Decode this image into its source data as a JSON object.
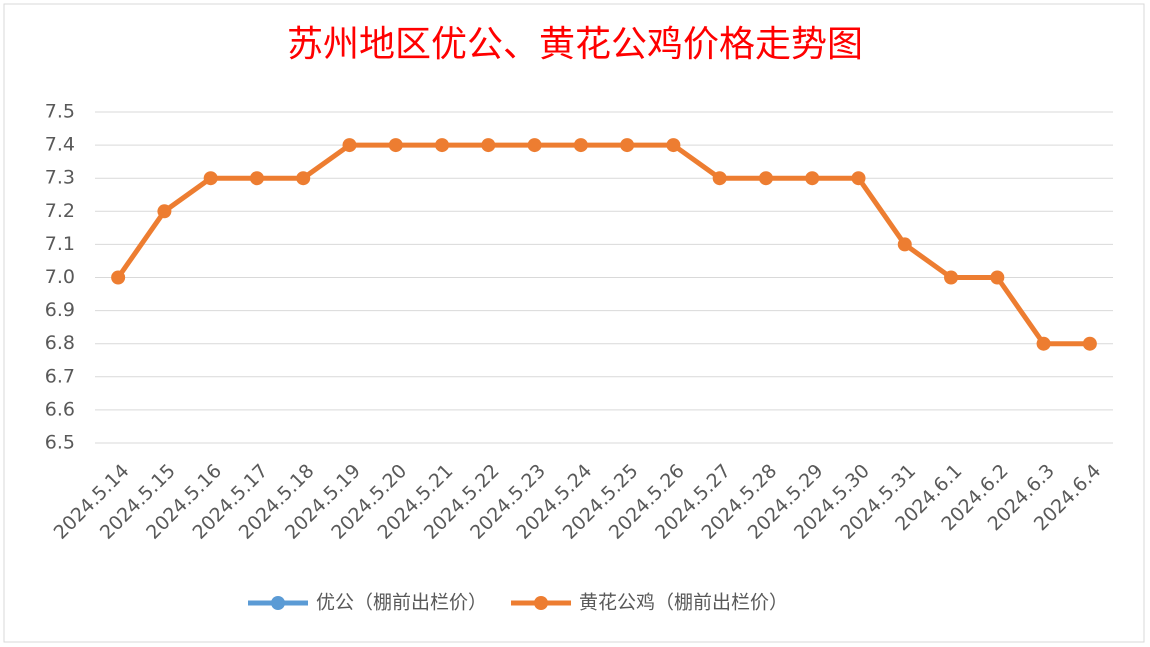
{
  "chart_data": {
    "type": "line",
    "title": "苏州地区优公、黄花公鸡价格走势图",
    "categories": [
      "2024.5.14",
      "2024.5.15",
      "2024.5.16",
      "2024.5.17",
      "2024.5.18",
      "2024.5.19",
      "2024.5.20",
      "2024.5.21",
      "2024.5.22",
      "2024.5.23",
      "2024.5.24",
      "2024.5.25",
      "2024.5.26",
      "2024.5.27",
      "2024.5.28",
      "2024.5.29",
      "2024.5.30",
      "2024.5.31",
      "2024.6.1",
      "2024.6.2",
      "2024.6.3",
      "2024.6.4"
    ],
    "series": [
      {
        "name": "优公（棚前出栏价）",
        "color": "#5b9bd5",
        "values": [
          null,
          null,
          null,
          null,
          null,
          null,
          null,
          null,
          null,
          null,
          null,
          null,
          null,
          null,
          null,
          null,
          null,
          null,
          null,
          null,
          null,
          null
        ]
      },
      {
        "name": "黄花公鸡（棚前出栏价）",
        "color": "#ed7d31",
        "values": [
          7.0,
          7.2,
          7.3,
          7.3,
          7.3,
          7.4,
          7.4,
          7.4,
          7.4,
          7.4,
          7.4,
          7.4,
          7.4,
          7.3,
          7.3,
          7.3,
          7.3,
          7.1,
          7.0,
          7.0,
          6.8,
          6.8
        ]
      }
    ],
    "ylim": [
      6.5,
      7.5
    ],
    "yticks": [
      6.5,
      6.6,
      6.7,
      6.8,
      6.9,
      {
        "value": 7,
        "label": "7.0"
      },
      7.1,
      7.2,
      7.3,
      7.4,
      7.5
    ],
    "grid": true,
    "legend": "bottom"
  }
}
